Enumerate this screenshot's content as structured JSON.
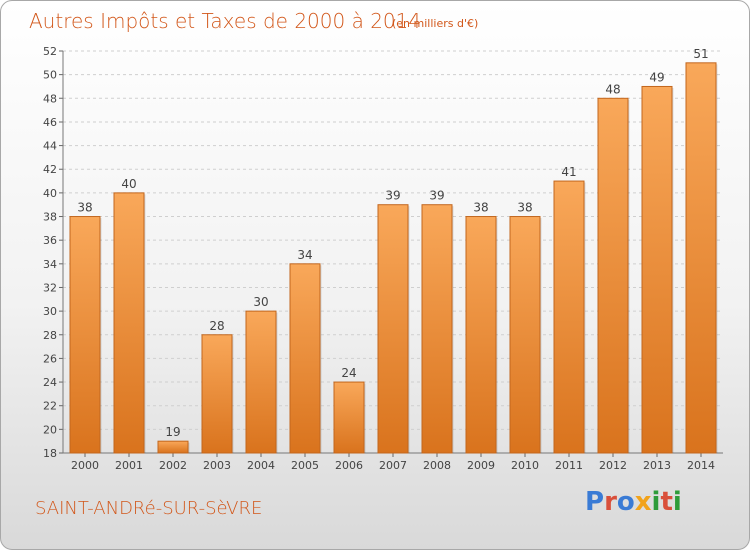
{
  "header": {
    "title": "Autres Impôts et Taxes de 2000 à 2014",
    "unit_note": "(en milliers d'€)"
  },
  "footer": {
    "commune": "SAINT-ANDRé-SUR-SèVRE",
    "logo_text": "Proxiti",
    "logo_colors": [
      "#3a7bd5",
      "#d94f3a",
      "#3a7bd5",
      "#f2a31b",
      "#2e9c3a",
      "#d94f3a",
      "#2e9c3a"
    ]
  },
  "colors": {
    "accent": "#d2571a",
    "bar_light": "#f9a85a",
    "bar_dark": "#d9731d",
    "bar_edge": "#c2661d",
    "grid": "#cfcfcf",
    "axis_text": "#444444"
  },
  "chart_data": {
    "type": "bar",
    "title": "Autres Impôts et Taxes de 2000 à 2014",
    "subtitle": "(en milliers d'€)",
    "xlabel": "",
    "ylabel": "",
    "categories": [
      "2000",
      "2001",
      "2002",
      "2003",
      "2004",
      "2005",
      "2006",
      "2007",
      "2008",
      "2009",
      "2010",
      "2011",
      "2012",
      "2013",
      "2014"
    ],
    "values": [
      38,
      40,
      19,
      28,
      30,
      34,
      24,
      39,
      39,
      38,
      38,
      41,
      48,
      49,
      51
    ],
    "ylim": [
      18,
      52
    ],
    "yticks": [
      18,
      20,
      22,
      24,
      26,
      28,
      30,
      32,
      34,
      36,
      38,
      40,
      42,
      44,
      46,
      48,
      50,
      52
    ],
    "grid": true,
    "data_labels": true
  }
}
